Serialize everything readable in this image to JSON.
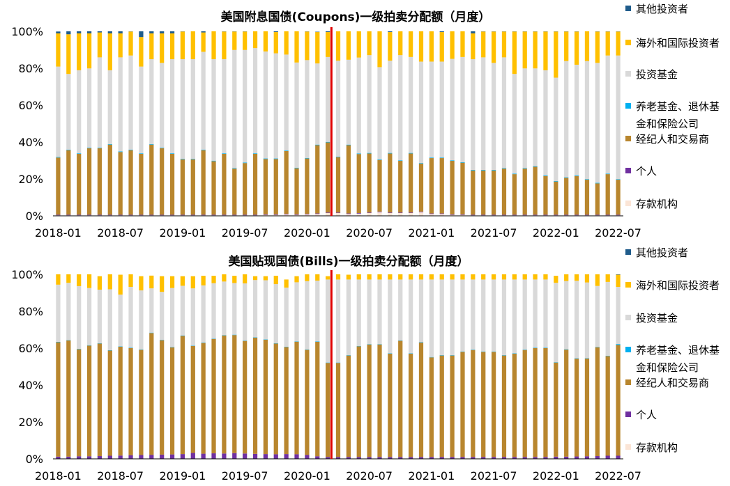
{
  "chart_data": [
    {
      "type": "bar",
      "stacked": true,
      "title": "美国附息国债(Coupons)一级拍卖分配额（月度）",
      "x_tick_labels": [
        "2018-01",
        "2018-07",
        "2019-01",
        "2019-07",
        "2020-01",
        "2020-07",
        "2021-01",
        "2021-07",
        "2022-01",
        "2022-07"
      ],
      "y_tick_labels": [
        "0%",
        "20%",
        "40%",
        "60%",
        "80%",
        "100%"
      ],
      "ylim": [
        0,
        100
      ],
      "legend": [
        "其他投资者",
        "海外和国际投资者",
        "投资基金",
        "养老基金、退休基\n金和保险公司",
        "经纪人和交易商",
        "个人",
        "存款机构"
      ],
      "legend_position": "right",
      "colors": {
        "存款机构": "#fbe5d6",
        "个人": "#7030a0",
        "经纪人和交易商": "#b8862e",
        "养老基金、退休基\n金和保险公司": "#00b0f0",
        "投资基金": "#d9d9d9",
        "海外和国际投资者": "#ffc000",
        "其他投资者": "#1f5c8b"
      },
      "series": [
        {
          "name": "存款机构",
          "values": [
            0.3,
            0.3,
            0.3,
            0.3,
            0.3,
            0.3,
            0.3,
            0.3,
            0.3,
            0.3,
            0.3,
            0.3,
            0.3,
            0.3,
            0.3,
            0.3,
            0.3,
            0.3,
            0.3,
            0.3,
            0.5,
            0.5,
            0.8,
            0.5,
            0.8,
            1,
            1.5,
            1.5,
            1,
            1.2,
            1.5,
            2,
            1.5,
            1.5,
            1.5,
            2,
            1,
            1,
            0.5,
            0.5,
            0.3,
            0.3,
            0.3,
            0.3,
            0.3,
            0.3,
            0.3,
            0.3,
            0.3,
            0.3,
            0.3,
            0.3,
            0.3,
            0.3,
            0.3
          ]
        },
        {
          "name": "个人",
          "values": [
            0.3,
            0.3,
            0.3,
            0.3,
            0.3,
            0.3,
            0.3,
            0.3,
            0.3,
            0.3,
            0.3,
            0.3,
            0.3,
            0.3,
            0.3,
            0.3,
            0.3,
            0.3,
            0.3,
            0.3,
            0.3,
            0.3,
            0.3,
            0.3,
            0.3,
            0.3,
            0.3,
            0.3,
            0.3,
            0.3,
            0.3,
            0.3,
            0.3,
            0.3,
            0.3,
            0.3,
            0.3,
            0.3,
            0.3,
            0.3,
            0.3,
            0.3,
            0.3,
            0.3,
            0.3,
            0.3,
            0.3,
            0.3,
            0.3,
            0.3,
            0.3,
            0.3,
            0.3,
            0.3,
            0.3
          ]
        },
        {
          "name": "经纪人和交易商",
          "values": [
            31,
            35,
            33,
            36,
            36,
            38,
            34,
            35,
            33,
            38,
            36,
            33,
            30,
            30,
            35,
            29,
            33,
            25,
            28,
            33,
            30,
            30,
            34,
            25,
            30,
            37,
            38,
            30,
            37,
            32,
            32,
            28,
            32,
            28,
            32,
            26,
            30,
            30,
            29,
            28,
            24,
            24,
            24,
            25,
            22,
            25,
            26,
            21,
            18,
            20,
            21,
            19,
            17,
            22,
            19
          ]
        },
        {
          "name": "养老基金、退休基\n金和保险公司",
          "values": [
            0.3,
            0.3,
            0.3,
            0.3,
            0.3,
            0.3,
            0.3,
            0.3,
            0.3,
            0.3,
            0.3,
            0.3,
            0.3,
            0.3,
            0.3,
            0.3,
            0.3,
            0.3,
            0.3,
            0.3,
            0.3,
            0.3,
            0.3,
            0.3,
            0.3,
            0.3,
            0.3,
            0.3,
            0.3,
            0.3,
            0.3,
            0.3,
            0.3,
            0.3,
            0.3,
            0.3,
            0.3,
            0.3,
            0.3,
            0.3,
            0.3,
            0.3,
            0.3,
            0.3,
            0.3,
            0.3,
            0.3,
            0.3,
            0.3,
            0.3,
            0.3,
            0.3,
            0.3,
            0.3,
            0.3
          ]
        },
        {
          "name": "投资基金",
          "values": [
            49,
            41,
            45,
            43,
            49,
            40,
            51,
            51,
            47,
            46,
            46,
            51,
            54,
            54,
            53,
            55,
            51,
            64,
            61,
            57,
            58,
            57,
            52,
            57,
            53,
            44,
            46,
            52,
            46,
            52,
            53,
            50,
            50,
            57,
            52,
            55,
            52,
            52,
            55,
            57,
            60,
            61,
            58,
            60,
            54,
            54,
            53,
            57,
            56,
            63,
            60,
            64,
            65,
            64,
            67
          ]
        },
        {
          "name": "海外和国际投资者",
          "values": [
            18,
            21.5,
            20,
            19,
            13.5,
            20,
            13,
            13,
            16,
            14,
            16,
            14,
            15,
            15.5,
            10.5,
            15.5,
            15,
            10,
            10,
            9.5,
            11.5,
            11.5,
            13.5,
            17,
            15.5,
            17,
            13.5,
            17,
            15.5,
            15,
            14,
            19.5,
            15.5,
            14,
            15.5,
            18,
            17,
            16,
            15.5,
            14,
            14,
            14,
            17,
            14,
            23,
            20,
            20,
            21,
            25,
            16,
            18,
            16.5,
            17,
            13,
            13
          ]
        },
        {
          "name": "其他投资者",
          "values": [
            1,
            1.9,
            1.4,
            1.4,
            0.9,
            1.4,
            1.7,
            0.9,
            3.4,
            1.4,
            1.4,
            1.4,
            0.4,
            0.9,
            0.9,
            0.9,
            0.4,
            0.4,
            0.4,
            0.1,
            0.1,
            0.9,
            0.4,
            0.2,
            0.3,
            0.2,
            0.9,
            0.2,
            0.2,
            0.5,
            0.2,
            0.2,
            1.7,
            0.2,
            0.2,
            0.2,
            0.2,
            1.2,
            0.2,
            0.2,
            1.2,
            0.2,
            0.2,
            0.2,
            0.2,
            0.2,
            0.2,
            0.2,
            0.2,
            0.2,
            0.2,
            0.2,
            0.2,
            0.2,
            0.2
          ]
        }
      ],
      "divider_after_index": 26
    },
    {
      "type": "bar",
      "stacked": true,
      "title": "美国贴现国债(Bills)一级拍卖分配额（月度）",
      "x_tick_labels": [
        "2018-01",
        "2018-07",
        "2019-01",
        "2019-07",
        "2020-01",
        "2020-07",
        "2021-01",
        "2021-07",
        "2022-01",
        "2022-07"
      ],
      "y_tick_labels": [
        "0%",
        "20%",
        "40%",
        "60%",
        "80%",
        "100%"
      ],
      "ylim": [
        0,
        100
      ],
      "legend": [
        "其他投资者",
        "海外和国际投资者",
        "投资基金",
        "养老基金、退休基\n金和保险公司",
        "经纪人和交易商",
        "个人",
        "存款机构"
      ],
      "legend_position": "right",
      "series": [
        {
          "name": "存款机构",
          "values": [
            0.2,
            0.2,
            0.2,
            0.2,
            0.2,
            0.2,
            0.2,
            0.2,
            0.2,
            0.2,
            0.2,
            0.2,
            0.2,
            0.2,
            0.2,
            0.2,
            0.2,
            0.2,
            0.2,
            0.2,
            0.2,
            0.2,
            0.2,
            0.2,
            0.2,
            0.2,
            0.2,
            0.2,
            0.2,
            0.2,
            0.2,
            0.2,
            0.2,
            0.2,
            0.2,
            0.2,
            0.2,
            0.2,
            0.2,
            0.2,
            0.2,
            0.2,
            0.2,
            0.2,
            0.2,
            0.2,
            0.2,
            0.2,
            0.2,
            0.2,
            0.2,
            0.2,
            0.2,
            0.2,
            0.2
          ]
        },
        {
          "name": "个人",
          "values": [
            1,
            1,
            1.2,
            1.2,
            1.3,
            1.5,
            1.6,
            1.8,
            1.9,
            2,
            2.1,
            2.2,
            2.4,
            3,
            2.6,
            2.8,
            2.7,
            2.9,
            2.7,
            2.5,
            2.4,
            2.3,
            2.4,
            2.3,
            1.9,
            1.2,
            0.8,
            0.8,
            0.8,
            0.8,
            0.8,
            0.8,
            0.8,
            0.8,
            0.8,
            0.8,
            0.8,
            0.8,
            0.8,
            0.8,
            0.8,
            0.8,
            0.8,
            0.8,
            0.8,
            0.8,
            0.8,
            0.8,
            1,
            1,
            1.1,
            1.2,
            1.3,
            1.5,
            1.5
          ]
        },
        {
          "name": "经纪人和交易商",
          "values": [
            62,
            63,
            58,
            60,
            61,
            57,
            59,
            58,
            57,
            66,
            62,
            58,
            64,
            58,
            60,
            62,
            64,
            64,
            61,
            63,
            62,
            60,
            58,
            61,
            57,
            62,
            51,
            51,
            55,
            60,
            61,
            61,
            56,
            63,
            56,
            62,
            54,
            55,
            55,
            57,
            58,
            57,
            57,
            55,
            56,
            58,
            59,
            59,
            51,
            58,
            53,
            53,
            59,
            54,
            60
          ]
        },
        {
          "name": "养老基金、退休基\n金和保险公司",
          "values": [
            0.2,
            0.2,
            0.2,
            0.2,
            0.2,
            0.2,
            0.2,
            0.2,
            0.2,
            0.2,
            0.2,
            0.2,
            0.2,
            0.2,
            0.2,
            0.2,
            0.2,
            0.2,
            0.2,
            0.2,
            0.2,
            0.2,
            0.2,
            0.2,
            0.2,
            0.2,
            0.2,
            0.2,
            0.2,
            0.2,
            0.2,
            0.2,
            0.2,
            0.2,
            0.2,
            0.2,
            0.2,
            0.2,
            0.2,
            0.2,
            0.2,
            0.2,
            0.2,
            0.2,
            0.2,
            0.2,
            0.2,
            0.2,
            0.2,
            0.2,
            0.2,
            0.2,
            0.2,
            0.2,
            0.5
          ]
        },
        {
          "name": "投资基金",
          "values": [
            31,
            31,
            34,
            31,
            29,
            33,
            28,
            33,
            32,
            24,
            26,
            32,
            27,
            31,
            31,
            30,
            29,
            28,
            31,
            31,
            32,
            32,
            32,
            32,
            37,
            33,
            45,
            45,
            41,
            36,
            35,
            35,
            40,
            33,
            40,
            34,
            42,
            41,
            41,
            39,
            38,
            39,
            39,
            41,
            40,
            38,
            37,
            37,
            43,
            37,
            42,
            41,
            33,
            40,
            31
          ]
        },
        {
          "name": "海外和国际投资者",
          "values": [
            5.6,
            5.6,
            6.4,
            7.4,
            7.3,
            8.1,
            10.8,
            6.8,
            7.7,
            6.9,
            8.5,
            6.4,
            5.2,
            6.6,
            5.2,
            4,
            3.9,
            3.9,
            4.9,
            2.1,
            2.2,
            4.5,
            4.4,
            3.3,
            3.7,
            3.4,
            1.8,
            2.8,
            2.6,
            2.8,
            2.8,
            2.8,
            2.8,
            2.8,
            2.8,
            2.8,
            2.8,
            2.8,
            2.8,
            2.8,
            2.8,
            2.8,
            2.8,
            2.8,
            2.8,
            2.8,
            2.8,
            2.8,
            3.8,
            3.6,
            3.5,
            4.4,
            6.3,
            4.1,
            6.6
          ]
        },
        {
          "name": "其他投资者",
          "values": [
            0,
            0,
            0,
            0,
            0,
            0,
            0,
            0,
            0,
            0,
            0,
            0,
            0,
            0,
            0,
            0,
            0,
            0,
            0,
            0,
            0,
            0,
            0,
            0,
            0,
            0,
            0,
            0,
            0,
            0,
            0,
            0,
            0,
            0,
            0,
            0,
            0,
            0,
            0,
            0,
            0,
            0,
            0,
            0,
            0,
            0,
            0,
            0,
            0,
            0,
            0,
            0,
            0.2,
            0,
            0.2
          ]
        }
      ],
      "divider_after_index": 26
    }
  ]
}
